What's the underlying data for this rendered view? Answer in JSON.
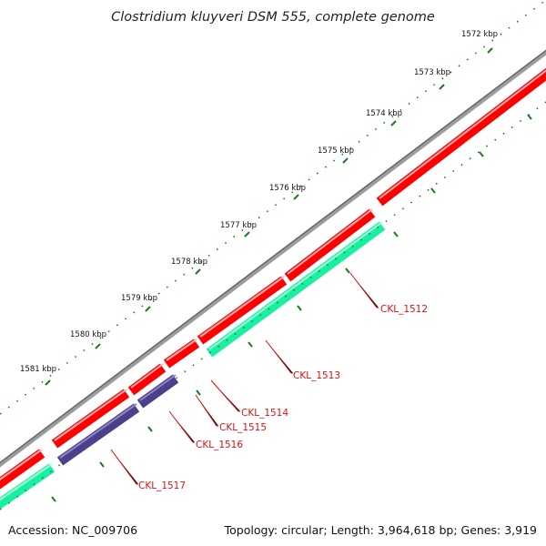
{
  "title": "Clostridium kluyveri DSM 555, complete genome",
  "footer": {
    "accession": "Accession: NC_009706",
    "summary": "Topology: circular; Length: 3,964,618 bp; Genes: 3,919"
  },
  "ticks": [
    "1572 kbp",
    "1573 kbp",
    "1574 kbp",
    "1575 kbp",
    "1576 kbp",
    "1577 kbp",
    "1578 kbp",
    "1579 kbp",
    "1580 kbp",
    "1581 kbp"
  ],
  "genes": [
    "CKL_1512",
    "CKL_1513",
    "CKL_1514",
    "CKL_1515",
    "CKL_1516",
    "CKL_1517"
  ],
  "colors": {
    "backbone": "#8a8a8a",
    "forward_cds": "#ff0000",
    "reverse_cds": "#17f0a0",
    "reverse_cds_alt": "#4b3f8f",
    "tick": "#1a7a1a",
    "label": "#e01010"
  }
}
